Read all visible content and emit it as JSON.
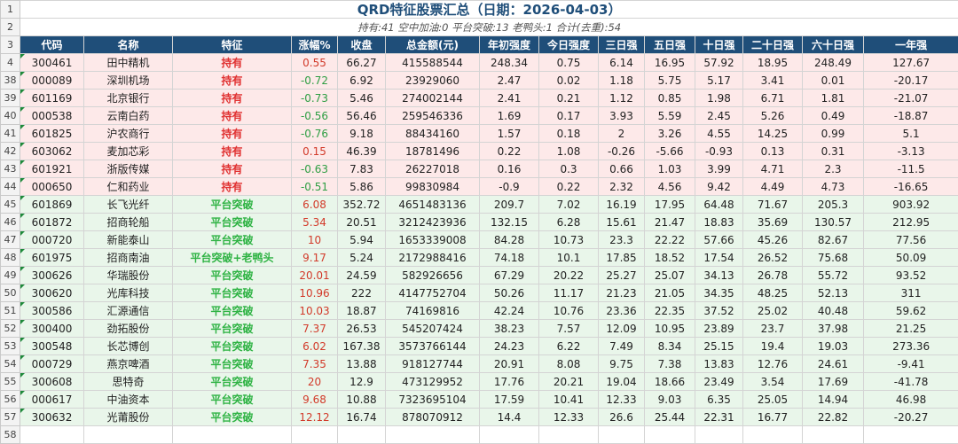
{
  "sheet": {
    "title": "QRD特征股票汇总（日期：2026-04-03）",
    "summary": "持有:41 空中加油:0 平台突破:13 老鸭头:1 合计(去重):54",
    "title_row_number": "1",
    "summary_row_number": "2",
    "header_row_number": "3",
    "last_row_number": "58"
  },
  "columns": [
    "代码",
    "名称",
    "特征",
    "涨幅%",
    "收盘",
    "总金额(元)",
    "年初强度",
    "今日强度",
    "三日强",
    "五日强",
    "十日强",
    "二十日强",
    "六十日强",
    "一年强"
  ],
  "rows": [
    {
      "rn": "4",
      "type": "hold",
      "code": "300461",
      "name": "田中精机",
      "feature": "持有",
      "chg": "0.55",
      "close": "66.27",
      "amount": "415588544",
      "ytd": "248.34",
      "today": "0.75",
      "d3": "6.14",
      "d5": "16.95",
      "d10": "57.92",
      "d20": "18.95",
      "d60": "248.49",
      "y1": "127.67"
    },
    {
      "rn": "38",
      "type": "hold",
      "code": "000089",
      "name": "深圳机场",
      "feature": "持有",
      "chg": "-0.72",
      "close": "6.92",
      "amount": "23929060",
      "ytd": "2.47",
      "today": "0.02",
      "d3": "1.18",
      "d5": "5.75",
      "d10": "5.17",
      "d20": "3.41",
      "d60": "0.01",
      "y1": "-20.17"
    },
    {
      "rn": "39",
      "type": "hold",
      "code": "601169",
      "name": "北京银行",
      "feature": "持有",
      "chg": "-0.73",
      "close": "5.46",
      "amount": "274002144",
      "ytd": "2.41",
      "today": "0.21",
      "d3": "1.12",
      "d5": "0.85",
      "d10": "1.98",
      "d20": "6.71",
      "d60": "1.81",
      "y1": "-21.07"
    },
    {
      "rn": "40",
      "type": "hold",
      "code": "000538",
      "name": "云南白药",
      "feature": "持有",
      "chg": "-0.56",
      "close": "56.46",
      "amount": "259546336",
      "ytd": "1.69",
      "today": "0.17",
      "d3": "3.93",
      "d5": "5.59",
      "d10": "2.45",
      "d20": "5.26",
      "d60": "0.49",
      "y1": "-18.87"
    },
    {
      "rn": "41",
      "type": "hold",
      "code": "601825",
      "name": "沪农商行",
      "feature": "持有",
      "chg": "-0.76",
      "close": "9.18",
      "amount": "88434160",
      "ytd": "1.57",
      "today": "0.18",
      "d3": "2",
      "d5": "3.26",
      "d10": "4.55",
      "d20": "14.25",
      "d60": "0.99",
      "y1": "5.1"
    },
    {
      "rn": "42",
      "type": "hold",
      "code": "603062",
      "name": "麦加芯彩",
      "feature": "持有",
      "chg": "0.15",
      "close": "46.39",
      "amount": "18781496",
      "ytd": "0.22",
      "today": "1.08",
      "d3": "-0.26",
      "d5": "-5.66",
      "d10": "-0.93",
      "d20": "0.13",
      "d60": "0.31",
      "y1": "-3.13"
    },
    {
      "rn": "43",
      "type": "hold",
      "code": "601921",
      "name": "浙版传媒",
      "feature": "持有",
      "chg": "-0.63",
      "close": "7.83",
      "amount": "26227018",
      "ytd": "0.16",
      "today": "0.3",
      "d3": "0.66",
      "d5": "1.03",
      "d10": "3.99",
      "d20": "4.71",
      "d60": "2.3",
      "y1": "-11.5"
    },
    {
      "rn": "44",
      "type": "hold",
      "code": "000650",
      "name": "仁和药业",
      "feature": "持有",
      "chg": "-0.51",
      "close": "5.86",
      "amount": "99830984",
      "ytd": "-0.9",
      "today": "0.22",
      "d3": "2.32",
      "d5": "4.56",
      "d10": "9.42",
      "d20": "4.49",
      "d60": "4.73",
      "y1": "-16.65"
    },
    {
      "rn": "45",
      "type": "break",
      "code": "601869",
      "name": "长飞光纤",
      "feature": "平台突破",
      "chg": "6.08",
      "close": "352.72",
      "amount": "4651483136",
      "ytd": "209.7",
      "today": "7.02",
      "d3": "16.19",
      "d5": "17.95",
      "d10": "64.48",
      "d20": "71.67",
      "d60": "205.3",
      "y1": "903.92"
    },
    {
      "rn": "46",
      "type": "break",
      "code": "601872",
      "name": "招商轮船",
      "feature": "平台突破",
      "chg": "5.34",
      "close": "20.51",
      "amount": "3212423936",
      "ytd": "132.15",
      "today": "6.28",
      "d3": "15.61",
      "d5": "21.47",
      "d10": "18.83",
      "d20": "35.69",
      "d60": "130.57",
      "y1": "212.95"
    },
    {
      "rn": "47",
      "type": "break",
      "code": "000720",
      "name": "新能泰山",
      "feature": "平台突破",
      "chg": "10",
      "close": "5.94",
      "amount": "1653339008",
      "ytd": "84.28",
      "today": "10.73",
      "d3": "23.3",
      "d5": "22.22",
      "d10": "57.66",
      "d20": "45.26",
      "d60": "82.67",
      "y1": "77.56"
    },
    {
      "rn": "48",
      "type": "break",
      "code": "601975",
      "name": "招商南油",
      "feature": "平台突破+老鸭头",
      "chg": "9.17",
      "close": "5.24",
      "amount": "2172988416",
      "ytd": "74.18",
      "today": "10.1",
      "d3": "17.85",
      "d5": "18.52",
      "d10": "17.54",
      "d20": "26.52",
      "d60": "75.68",
      "y1": "50.09"
    },
    {
      "rn": "49",
      "type": "break",
      "code": "300626",
      "name": "华瑞股份",
      "feature": "平台突破",
      "chg": "20.01",
      "close": "24.59",
      "amount": "582926656",
      "ytd": "67.29",
      "today": "20.22",
      "d3": "25.27",
      "d5": "25.07",
      "d10": "34.13",
      "d20": "26.78",
      "d60": "55.72",
      "y1": "93.52"
    },
    {
      "rn": "50",
      "type": "break",
      "code": "300620",
      "name": "光库科技",
      "feature": "平台突破",
      "chg": "10.96",
      "close": "222",
      "amount": "4147752704",
      "ytd": "50.26",
      "today": "11.17",
      "d3": "21.23",
      "d5": "21.05",
      "d10": "34.35",
      "d20": "48.25",
      "d60": "52.13",
      "y1": "311"
    },
    {
      "rn": "51",
      "type": "break",
      "code": "300586",
      "name": "汇源通信",
      "feature": "平台突破",
      "chg": "10.03",
      "close": "18.87",
      "amount": "74169816",
      "ytd": "42.24",
      "today": "10.76",
      "d3": "23.36",
      "d5": "22.35",
      "d10": "37.52",
      "d20": "25.02",
      "d60": "40.48",
      "y1": "59.62"
    },
    {
      "rn": "52",
      "type": "break",
      "code": "300400",
      "name": "劲拓股份",
      "feature": "平台突破",
      "chg": "7.37",
      "close": "26.53",
      "amount": "545207424",
      "ytd": "38.23",
      "today": "7.57",
      "d3": "12.09",
      "d5": "10.95",
      "d10": "23.89",
      "d20": "23.7",
      "d60": "37.98",
      "y1": "21.25"
    },
    {
      "rn": "53",
      "type": "break",
      "code": "300548",
      "name": "长芯博创",
      "feature": "平台突破",
      "chg": "6.02",
      "close": "167.38",
      "amount": "3573766144",
      "ytd": "24.23",
      "today": "6.22",
      "d3": "7.49",
      "d5": "8.34",
      "d10": "25.15",
      "d20": "19.4",
      "d60": "19.03",
      "y1": "273.36"
    },
    {
      "rn": "54",
      "type": "break",
      "code": "000729",
      "name": "燕京啤酒",
      "feature": "平台突破",
      "chg": "7.35",
      "close": "13.88",
      "amount": "918127744",
      "ytd": "20.91",
      "today": "8.08",
      "d3": "9.75",
      "d5": "7.38",
      "d10": "13.83",
      "d20": "12.76",
      "d60": "24.61",
      "y1": "-9.41"
    },
    {
      "rn": "55",
      "type": "break",
      "code": "300608",
      "name": "思特奇",
      "feature": "平台突破",
      "chg": "20",
      "close": "12.9",
      "amount": "473129952",
      "ytd": "17.76",
      "today": "20.21",
      "d3": "19.04",
      "d5": "18.66",
      "d10": "23.49",
      "d20": "3.54",
      "d60": "17.69",
      "y1": "-41.78"
    },
    {
      "rn": "56",
      "type": "break",
      "code": "000617",
      "name": "中油资本",
      "feature": "平台突破",
      "chg": "9.68",
      "close": "10.88",
      "amount": "7323695104",
      "ytd": "17.59",
      "today": "10.41",
      "d3": "12.33",
      "d5": "9.03",
      "d10": "6.35",
      "d20": "25.05",
      "d60": "14.94",
      "y1": "46.98"
    },
    {
      "rn": "57",
      "type": "break",
      "code": "300632",
      "name": "光莆股份",
      "feature": "平台突破",
      "chg": "12.12",
      "close": "16.74",
      "amount": "878070912",
      "ytd": "14.4",
      "today": "12.33",
      "d3": "26.6",
      "d5": "25.44",
      "d10": "22.31",
      "d20": "16.77",
      "d60": "22.82",
      "y1": "-20.27"
    }
  ]
}
